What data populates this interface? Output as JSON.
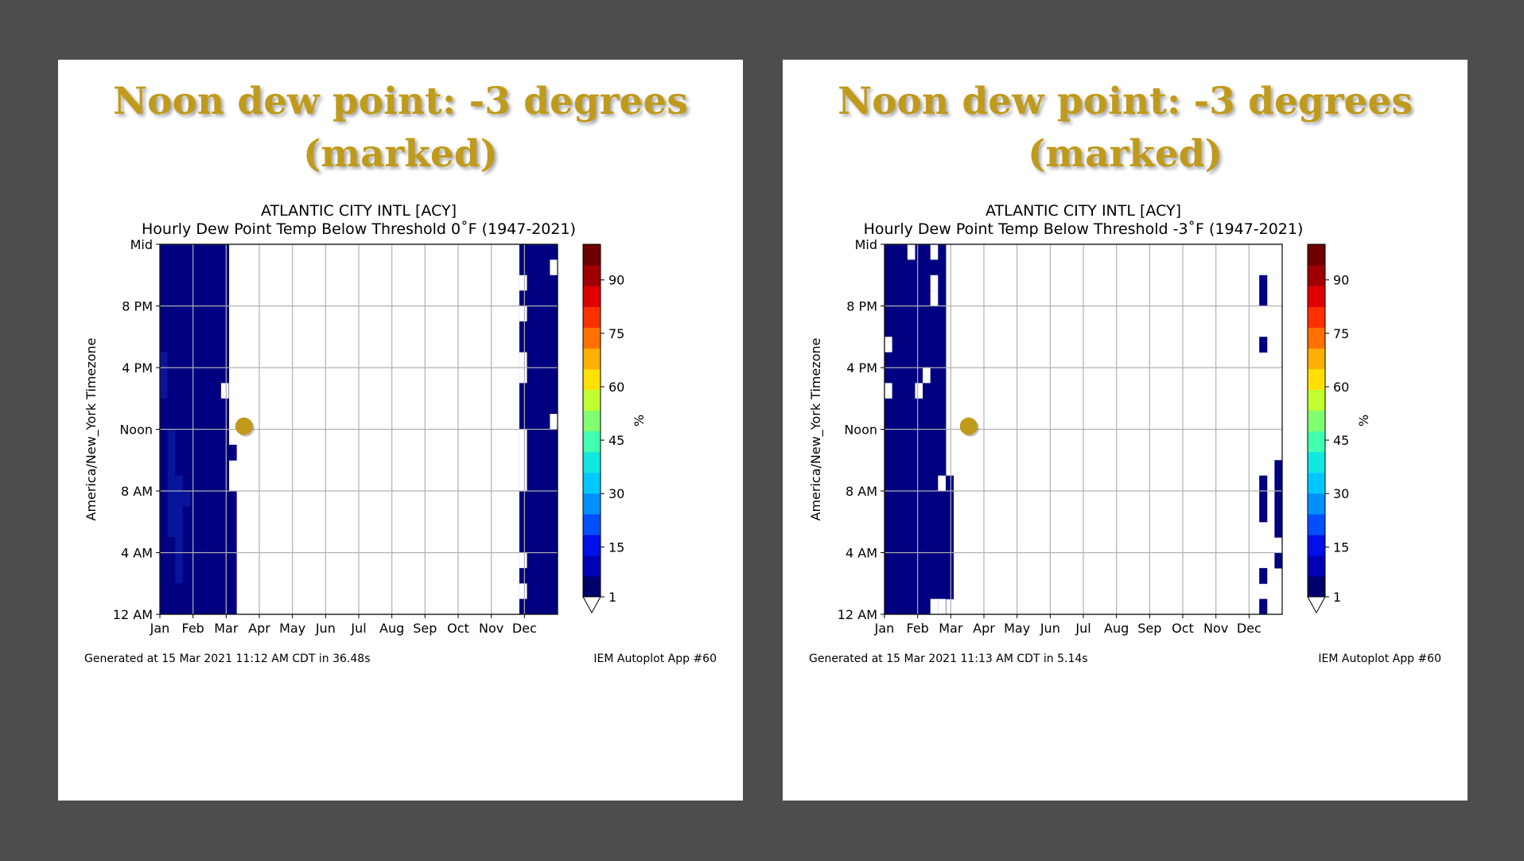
{
  "colors": {
    "background": "#4d4d4d",
    "headline": "#c09a1a",
    "marker": "#c09a1a",
    "cell": "#000080",
    "cell_alt": "#08149a"
  },
  "panels": [
    {
      "headline": [
        "Noon dew point: -3 degrees",
        "(marked)"
      ],
      "footer": {
        "generated": "Generated at 15 Mar 2021 11:12 AM CDT in 36.48s",
        "app": "IEM Autoplot App #60"
      },
      "chart_data": {
        "type": "heatmap",
        "title": "ATLANTIC CITY INTL [ACY]",
        "subtitle": "Hourly Dew Point Temp Below Threshold 0˚F (1947-2021)",
        "ylabel": "America/New_York Timezone",
        "xtick_labels": [
          "Jan",
          "Feb",
          "Mar",
          "Apr",
          "May",
          "Jun",
          "Jul",
          "Aug",
          "Sep",
          "Oct",
          "Nov",
          "Dec"
        ],
        "ytick_labels": [
          "12 AM",
          "4 AM",
          "8 AM",
          "Noon",
          "4 PM",
          "8 PM",
          "Mid"
        ],
        "ytick_hours": [
          0,
          4,
          8,
          12,
          16,
          20,
          24
        ],
        "xlim_weeks": [
          0,
          52
        ],
        "ylim_hours": [
          0,
          24
        ],
        "colorbar": {
          "label": "%",
          "ticks": [
            1,
            15,
            30,
            45,
            60,
            75,
            90
          ],
          "colors": [
            "#00006a",
            "#0000b4",
            "#0010e8",
            "#0050ff",
            "#0090ff",
            "#00c8ff",
            "#10e8e0",
            "#40ffb0",
            "#80ff70",
            "#c0ff30",
            "#ffe000",
            "#ffb000",
            "#ff7000",
            "#ff3000",
            "#e00000",
            "#a00000",
            "#6e0000"
          ],
          "extend": "min"
        },
        "marker": {
          "week": 11,
          "hour": 12.2
        },
        "runs": [
          {
            "w0": 0,
            "w1": 9,
            "h0": 8,
            "h1": 24
          },
          {
            "w0": 0,
            "w1": 10,
            "h0": 0,
            "h1": 8
          },
          {
            "w0": 9,
            "w1": 10,
            "h0": 10,
            "h1": 11
          },
          {
            "w0": 47,
            "w1": 52,
            "h0": 0,
            "h1": 24
          }
        ],
        "gaps": [
          {
            "w0": 8,
            "w1": 9,
            "h0": 14,
            "h1": 15
          },
          {
            "w0": 47,
            "w1": 48,
            "h0": 1,
            "h1": 2
          },
          {
            "w0": 47,
            "w1": 48,
            "h0": 3,
            "h1": 4
          },
          {
            "w0": 47,
            "w1": 48,
            "h0": 8,
            "h1": 12
          },
          {
            "w0": 47,
            "w1": 48,
            "h0": 15,
            "h1": 17
          },
          {
            "w0": 47,
            "w1": 48,
            "h0": 19,
            "h1": 20
          },
          {
            "w0": 47,
            "w1": 48,
            "h0": 21,
            "h1": 22
          },
          {
            "w0": 51,
            "w1": 52,
            "h0": 22,
            "h1": 23
          },
          {
            "w0": 51,
            "w1": 52,
            "h0": 12,
            "h1": 13
          }
        ],
        "tints": [
          {
            "w0": 0,
            "w1": 1,
            "h0": 14,
            "h1": 17
          },
          {
            "w0": 1,
            "w1": 2,
            "h0": 5,
            "h1": 12
          },
          {
            "w0": 2,
            "w1": 3,
            "h0": 2,
            "h1": 9
          },
          {
            "w0": 3,
            "w1": 4,
            "h0": 7,
            "h1": 8
          }
        ]
      }
    },
    {
      "headline": [
        "Noon dew point: -3 degrees",
        "(marked)"
      ],
      "footer": {
        "generated": "Generated at 15 Mar 2021 11:13 AM CDT in 5.14s",
        "app": "IEM Autoplot App #60"
      },
      "chart_data": {
        "type": "heatmap",
        "title": "ATLANTIC CITY INTL [ACY]",
        "subtitle": "Hourly Dew Point Temp Below Threshold -3˚F (1947-2021)",
        "ylabel": "America/New_York Timezone",
        "xtick_labels": [
          "Jan",
          "Feb",
          "Mar",
          "Apr",
          "May",
          "Jun",
          "Jul",
          "Aug",
          "Sep",
          "Oct",
          "Nov",
          "Dec"
        ],
        "ytick_labels": [
          "12 AM",
          "4 AM",
          "8 AM",
          "Noon",
          "4 PM",
          "8 PM",
          "Mid"
        ],
        "ytick_hours": [
          0,
          4,
          8,
          12,
          16,
          20,
          24
        ],
        "xlim_weeks": [
          0,
          52
        ],
        "ylim_hours": [
          0,
          24
        ],
        "colorbar": {
          "label": "%",
          "ticks": [
            1,
            15,
            30,
            45,
            60,
            75,
            90
          ],
          "colors": [
            "#00006a",
            "#0000b4",
            "#0010e8",
            "#0050ff",
            "#0090ff",
            "#00c8ff",
            "#10e8e0",
            "#40ffb0",
            "#80ff70",
            "#c0ff30",
            "#ffe000",
            "#ffb000",
            "#ff7000",
            "#ff3000",
            "#e00000",
            "#a00000",
            "#6e0000"
          ],
          "extend": "min"
        },
        "marker": {
          "week": 11,
          "hour": 12.2
        },
        "runs": [
          {
            "w0": 0,
            "w1": 7,
            "h0": 8,
            "h1": 24
          },
          {
            "w0": 7,
            "w1": 8,
            "h0": 9,
            "h1": 24
          },
          {
            "w0": 0,
            "w1": 8,
            "h0": 0,
            "h1": 8
          },
          {
            "w0": 8,
            "w1": 9,
            "h0": 1,
            "h1": 9
          },
          {
            "w0": 49,
            "w1": 50,
            "h0": 0,
            "h1": 1
          },
          {
            "w0": 49,
            "w1": 50,
            "h0": 2,
            "h1": 3
          },
          {
            "w0": 49,
            "w1": 50,
            "h0": 6,
            "h1": 9
          },
          {
            "w0": 49,
            "w1": 50,
            "h0": 17,
            "h1": 18
          },
          {
            "w0": 49,
            "w1": 50,
            "h0": 20,
            "h1": 22
          },
          {
            "w0": 51,
            "w1": 52,
            "h0": 3,
            "h1": 4
          },
          {
            "w0": 51,
            "w1": 52,
            "h0": 5,
            "h1": 10
          }
        ],
        "gaps": [
          {
            "w0": 0,
            "w1": 1,
            "h0": 17,
            "h1": 18
          },
          {
            "w0": 0,
            "w1": 1,
            "h0": 14,
            "h1": 15
          },
          {
            "w0": 3,
            "w1": 4,
            "h0": 23,
            "h1": 24
          },
          {
            "w0": 6,
            "w1": 7,
            "h0": 23,
            "h1": 24
          },
          {
            "w0": 5,
            "w1": 6,
            "h0": 15,
            "h1": 16
          },
          {
            "w0": 4,
            "w1": 5,
            "h0": 14,
            "h1": 15
          },
          {
            "w0": 6,
            "w1": 7,
            "h0": 21,
            "h1": 22
          },
          {
            "w0": 6,
            "w1": 7,
            "h0": 20,
            "h1": 21
          },
          {
            "w0": 7,
            "w1": 8,
            "h0": 8,
            "h1": 9
          },
          {
            "w0": 7,
            "w1": 8,
            "h0": 0,
            "h1": 1
          },
          {
            "w0": 6,
            "w1": 7,
            "h0": 0,
            "h1": 1
          }
        ],
        "tints": []
      }
    }
  ]
}
